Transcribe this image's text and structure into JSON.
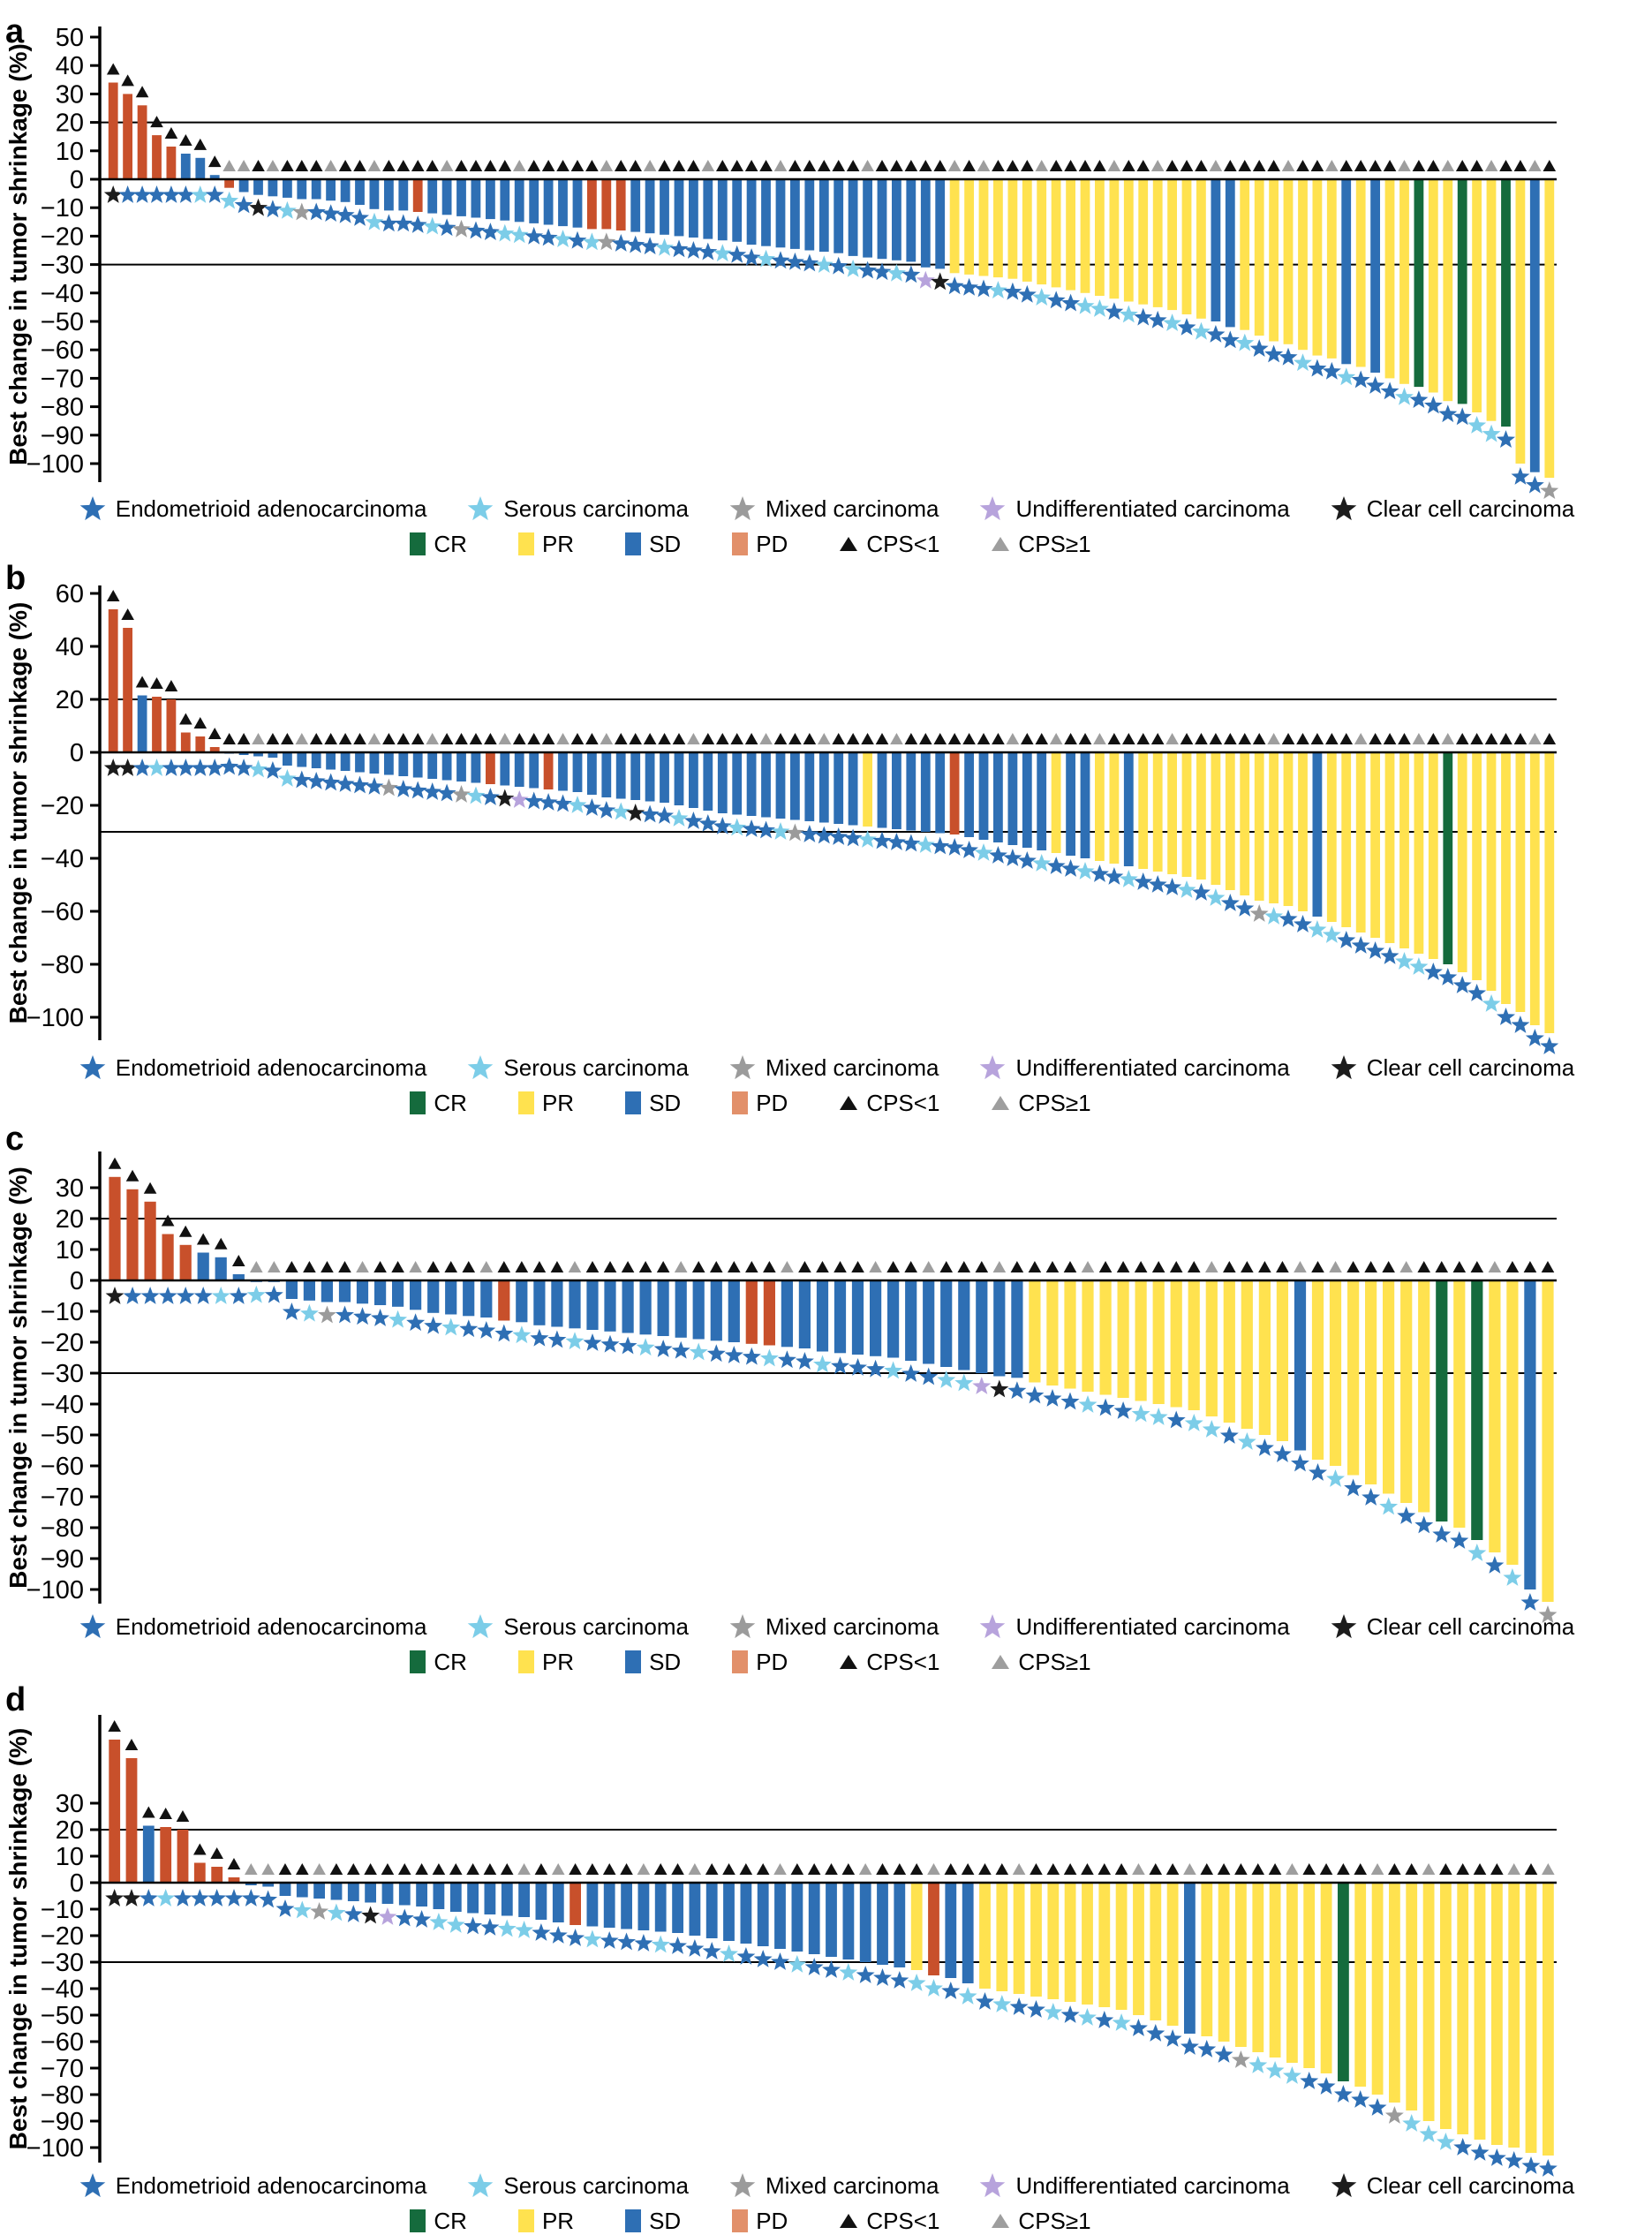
{
  "figure": {
    "y_axis_label": "Best change in tumor shrinkage (%)",
    "panel_labels": [
      "a",
      "b",
      "c",
      "d"
    ]
  },
  "legend": {
    "histology": [
      {
        "code": "E",
        "label": "Endometrioid adenocarcinoma",
        "color": "#2E6FB4"
      },
      {
        "code": "S",
        "label": "Serous carcinoma",
        "color": "#7CCDE8"
      },
      {
        "code": "M",
        "label": "Mixed carcinoma",
        "color": "#9B9B9B"
      },
      {
        "code": "U",
        "label": "Undifferentiated carcinoma",
        "color": "#B7A3DC"
      },
      {
        "code": "K",
        "label": "Clear cell carcinoma",
        "color": "#1C1C1C"
      }
    ],
    "response": [
      {
        "code": "C",
        "label": "CR",
        "color": "#156B3D"
      },
      {
        "code": "R",
        "label": "PR",
        "color": "#FFE24F"
      },
      {
        "code": "S",
        "label": "SD",
        "color": "#2E6FB4"
      },
      {
        "code": "P",
        "label": "PD",
        "color": "#C8502B",
        "legend_color": "#E2906A"
      }
    ],
    "cps": [
      {
        "code": "b",
        "label": "CPS<1",
        "color": "#111111"
      },
      {
        "code": "g",
        "label": "CPS≥1",
        "color": "#9E9E9E"
      }
    ]
  },
  "chart_data": [
    {
      "panel": "a",
      "type": "bar",
      "ylabel": "Best change in tumor shrinkage (%)",
      "yticks": [
        50,
        40,
        30,
        20,
        10,
        0,
        -10,
        -20,
        -30,
        -40,
        -50,
        -60,
        -70,
        -80,
        -90,
        -100
      ],
      "ref_lines": [
        20,
        -30
      ],
      "values": [
        34,
        30,
        26,
        15.5,
        11.5,
        9,
        7.5,
        1.5,
        -3,
        -4.5,
        -5.5,
        -6,
        -6.5,
        -7,
        -7,
        -7.5,
        -8,
        -9,
        -10.5,
        -11,
        -11,
        -11.5,
        -12,
        -12.5,
        -13,
        -13.5,
        -14,
        -14.5,
        -15,
        -15.5,
        -16,
        -16.5,
        -17,
        -17.5,
        -17.5,
        -18,
        -18.5,
        -19,
        -19.5,
        -20,
        -20.5,
        -21,
        -21.5,
        -22,
        -23,
        -23.5,
        -24,
        -24.5,
        -25,
        -25.5,
        -26,
        -27,
        -27.5,
        -28,
        -28.5,
        -29,
        -31,
        -31.5,
        -33,
        -33.5,
        -34,
        -34.5,
        -35,
        -36,
        -37,
        -38,
        -39,
        -40,
        -41,
        -42,
        -43,
        -44,
        -45,
        -46,
        -47.5,
        -49,
        -50,
        -52,
        -53,
        -55,
        -57,
        -58,
        -60,
        -62,
        -63,
        -65,
        -66,
        -68,
        -70,
        -72,
        -73,
        -75,
        -78,
        -79,
        -82,
        -85,
        -87,
        -100,
        -103,
        -105
      ],
      "response": "PPPPPSSSPSSSSSSSSSSSSPSSSSSSSSSSSPPPSSSSSSSSSSSSSSSSSSSSSSRRRRRRRRRRRRRRRRRRSSRRRRRRRSRSRRCRRCRRCRSR",
      "histology": "KEEEEESESEKESMEEEESEEESEMEESSEESESMEEESEEESEESEEESESEESEUKEEESEESEESSESEESESEESEEESEESEEESEEEESSEEEM",
      "cps": "bbbbbbbbggbgbbbgbbgbbbbgbbbbgbbbbbgbbgbbbgbbbbgbbbbbgbbbbbgbgbbbgbbbbgbbgbbbgbbbbgbbgbbbbgbbgbbgbbgb"
    },
    {
      "panel": "b",
      "type": "bar",
      "ylabel": "Best change in tumor shrinkage (%)",
      "yticks": [
        60,
        40,
        20,
        0,
        -20,
        -40,
        -60,
        -80,
        -100
      ],
      "ref_lines": [
        20,
        -30
      ],
      "values": [
        54,
        47,
        21.5,
        21,
        20,
        7.5,
        6,
        2,
        -0.5,
        -1,
        -1.5,
        -2,
        -5,
        -5.5,
        -6,
        -6.5,
        -7,
        -7.5,
        -8,
        -8.5,
        -9,
        -9.5,
        -10,
        -10.5,
        -11,
        -11.5,
        -12,
        -12.5,
        -13,
        -13.5,
        -14,
        -14.5,
        -15,
        -16,
        -17,
        -17.5,
        -18,
        -18.5,
        -19,
        -20,
        -21,
        -22,
        -23,
        -23.5,
        -24,
        -24.5,
        -25,
        -25.5,
        -26,
        -26.5,
        -27,
        -27.5,
        -28,
        -28.5,
        -29,
        -29.5,
        -30,
        -30.5,
        -31,
        -32,
        -33,
        -34,
        -35,
        -36,
        -37,
        -38,
        -39,
        -40,
        -41,
        -42,
        -43,
        -44,
        -45,
        -46,
        -47,
        -48,
        -50,
        -52,
        -54,
        -56,
        -57,
        -58,
        -60,
        -62,
        -64,
        -66,
        -68,
        -70,
        -72,
        -74,
        -76,
        -78,
        -80,
        -83,
        -86,
        -90,
        -95,
        -98,
        -103,
        -106
      ],
      "response": "PPSPPPPPSSSSSSSSSSSSSSSSSSPSSSPSSSSSSSSSSSSSSSSSSSSSRSSSSSPSSSSSSRSSRRSRRRRRRRRRRRRSRRRRRRRRCRRRRRRR",
      "histology": "KKESEEEEEESESEEEEEEMEEEEMSEKUEEESEESKEESEEESEESMEEEESEEESEEESEEESEESEESEEESESEEMSEESSEEEESSEEEESEEEE",
      "cps": "bbbbbbbbbbgbbgbbbbgbbbgbbbbgbbbgbbgbbbbbgbbbbgbbbgbbbbgbbbbbbbgbbgbbgbbbbgbbbbbbgbbbbbgbbbgbgbbbbbgb"
    },
    {
      "panel": "c",
      "type": "bar",
      "ylabel": "Best change in tumor shrinkage (%)",
      "yticks": [
        30,
        20,
        10,
        0,
        -10,
        -20,
        -30,
        -40,
        -50,
        -60,
        -70,
        -80,
        -90,
        -100
      ],
      "ref_lines": [
        20,
        -30
      ],
      "values": [
        33.5,
        29.5,
        25.5,
        15,
        11.5,
        9,
        7.5,
        2,
        -0.5,
        -0.5,
        -6,
        -6.5,
        -7,
        -7,
        -7.5,
        -8,
        -8.5,
        -9.5,
        -10.5,
        -11,
        -11.5,
        -12,
        -13,
        -13.5,
        -14.5,
        -15,
        -15.5,
        -16,
        -16.5,
        -17,
        -17.5,
        -18,
        -18.5,
        -19,
        -19.5,
        -20,
        -20.5,
        -21,
        -21.5,
        -22,
        -23,
        -23.5,
        -24,
        -24.5,
        -25,
        -26,
        -27,
        -28,
        -29,
        -30,
        -31,
        -31.5,
        -33,
        -34,
        -35,
        -36,
        -37,
        -38,
        -39,
        -40,
        -41,
        -42,
        -44,
        -46,
        -48,
        -50,
        -52,
        -55,
        -58,
        -60,
        -63,
        -66,
        -69,
        -72,
        -75,
        -78,
        -80,
        -84,
        -88,
        -92,
        -100,
        -104
      ],
      "response": "PPPPPSSSSSSSSSSSSSSSSSPSSSSSSSSSSSSSPPSSSSSSSSSSSSSSRRRRRRRRRRRRRRRSRRRRRRRCRCRRSR",
      "histology": "KEEEEESESEESMEEESEESEEESEESEEESEESEEESEESEEESEESSUKEEEESEESSESSESEEEESEESEEEESESEM",
      "cps": "bbbbbbbbggbbbbgbbgbbbgbbbbgbbbbbgbbbbbgbbbbgbbgbbbgbbbbgbbbbbbgbbbbgbgbbbgbbbbgbbb"
    },
    {
      "panel": "d",
      "type": "bar",
      "ylabel": "Best change in tumor shrinkage (%)",
      "yticks": [
        30,
        20,
        10,
        0,
        -10,
        -20,
        -30,
        -40,
        -50,
        -60,
        -70,
        -80,
        -90,
        -100
      ],
      "ref_lines": [
        20,
        -30
      ],
      "values": [
        54,
        47,
        21.5,
        21,
        20,
        7.5,
        6,
        2,
        -1,
        -1.5,
        -5,
        -5.5,
        -6,
        -6.5,
        -7,
        -7.5,
        -8,
        -8.5,
        -9,
        -10,
        -11,
        -11.5,
        -12,
        -12.5,
        -13,
        -14,
        -15,
        -16,
        -16.5,
        -17,
        -17.5,
        -18,
        -18.5,
        -19,
        -20,
        -21,
        -22,
        -23,
        -24,
        -25,
        -26,
        -27,
        -28,
        -29,
        -30,
        -31,
        -32,
        -33,
        -35,
        -36,
        -38,
        -40,
        -41,
        -42,
        -43,
        -44,
        -45,
        -46,
        -47,
        -48,
        -50,
        -52,
        -54,
        -57,
        -58,
        -60,
        -62,
        -64,
        -66,
        -68,
        -70,
        -72,
        -75,
        -77,
        -80,
        -83,
        -86,
        -90,
        -93,
        -95,
        -97,
        -99,
        -100,
        -102,
        -103
      ],
      "response": "PPSPPPPPSSSSSSSSSSSSSSSSSSSPSSSSSSSSSSSSSSSSSSSRPSSRRRRRRRRRRRRSRRRRRRRRCRRRRRRRRRRRR",
      "histology": "KKESEEEEEEESMSEKUEESSEESSEEESEEESEEESEEESEESEEESSESESEESESESEEEEEEMSSSEEEEEMSSSEEEEEE",
      "cps": "bbbbbbbbggbbgbbbbbbbbbbbgbgbbbbgbbgbbbbgbbbbgbbbgbbbbgbbbbbbgbbgbbbbbgbbbbgbbgbbbbgbg"
    }
  ]
}
